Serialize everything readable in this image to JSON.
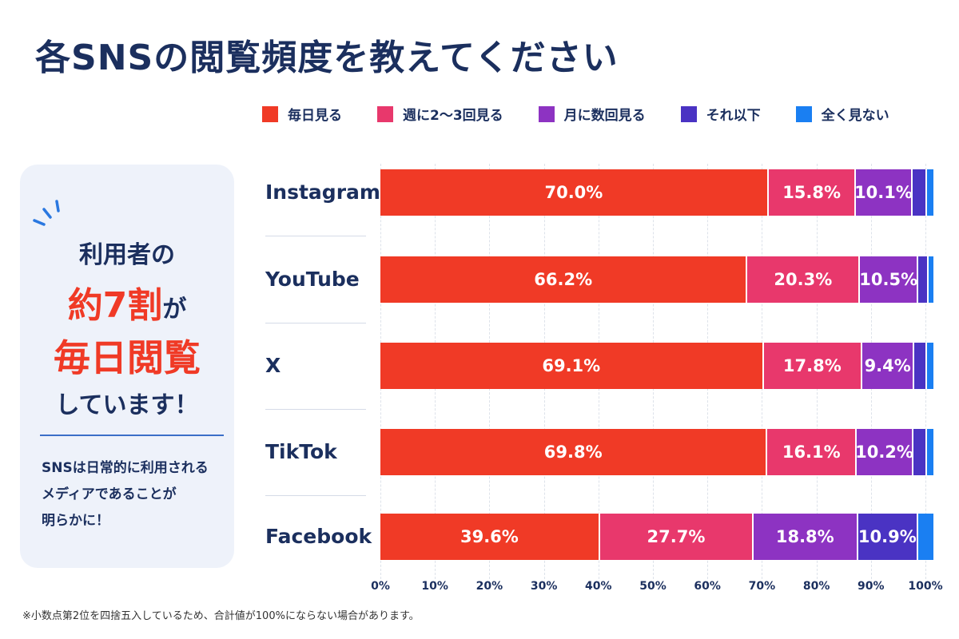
{
  "title": "各SNSの閲覧頻度を教えてください",
  "panel": {
    "line1": "利用者の",
    "line2a": "約7割",
    "line2b": "が",
    "line3": "毎日閲覧",
    "line4": "しています！",
    "sub1": "SNSは日常的に利用される",
    "sub2": "メディアであることが",
    "sub3": "明らかに！",
    "accent": "#f03a26"
  },
  "footnote": "※小数点第2位を四捨五入しているため、合計値が100%にならない場合があります。",
  "chart_data": {
    "type": "bar",
    "orientation": "horizontal-stacked",
    "title": "",
    "categories": [
      "Instagram",
      "YouTube",
      "X",
      "TikTok",
      "Facebook"
    ],
    "series": [
      {
        "name": "毎日見る",
        "color": "#f03a26",
        "values": [
          70.0,
          66.2,
          69.1,
          69.8,
          39.6
        ],
        "labels": [
          "70.0%",
          "66.2%",
          "69.1%",
          "69.8%",
          "39.6%"
        ]
      },
      {
        "name": "週に2〜3回見る",
        "color": "#e8386c",
        "values": [
          15.8,
          20.3,
          17.8,
          16.1,
          27.7
        ],
        "labels": [
          "15.8%",
          "20.3%",
          "17.8%",
          "16.1%",
          "27.7%"
        ]
      },
      {
        "name": "月に数回見る",
        "color": "#8d33c2",
        "values": [
          10.1,
          10.5,
          9.4,
          10.2,
          18.8
        ],
        "labels": [
          "10.1%",
          "10.5%",
          "9.4%",
          "10.2%",
          "18.8%"
        ]
      },
      {
        "name": "それ以下",
        "color": "#4a33c3",
        "values": [
          2.6,
          1.9,
          2.3,
          2.5,
          10.9
        ],
        "labels": [
          "",
          "",
          "",
          "",
          "10.9%"
        ]
      },
      {
        "name": "全く見ない",
        "color": "#1a7ff2",
        "values": [
          1.5,
          1.1,
          1.4,
          1.4,
          3.0
        ],
        "labels": [
          "",
          "",
          "",
          "",
          ""
        ]
      }
    ],
    "xlim": [
      0,
      100
    ],
    "xticks": [
      "0%",
      "10%",
      "20%",
      "30%",
      "40%",
      "50%",
      "60%",
      "70%",
      "80%",
      "90%",
      "100%"
    ],
    "grid": true,
    "legend": "top"
  }
}
